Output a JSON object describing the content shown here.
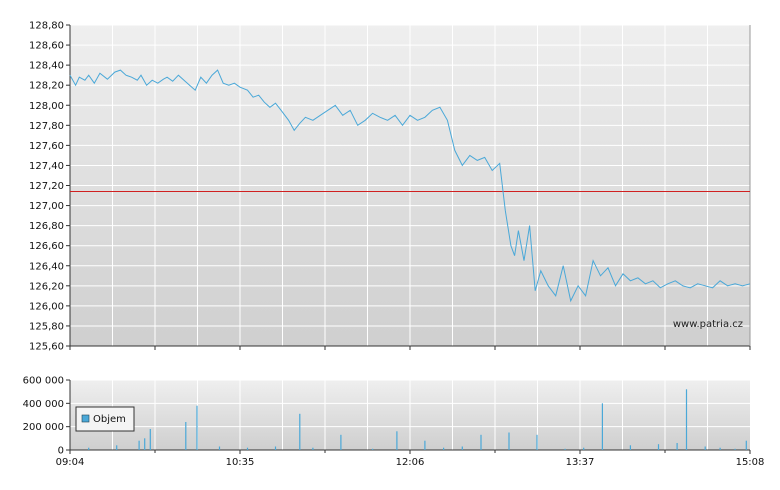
{
  "watermark": "www.patria.cz",
  "chart_data": [
    {
      "type": "line",
      "title": "",
      "xlabel": "",
      "ylabel": "",
      "ylim": [
        125.6,
        128.8
      ],
      "reference_line": 127.14,
      "xlim_minutes": [
        0,
        364
      ],
      "y_ticks": [
        "125,60",
        "125,80",
        "126,00",
        "126,20",
        "126,40",
        "126,60",
        "126,80",
        "127,00",
        "127,20",
        "127,40",
        "127,60",
        "127,80",
        "128,00",
        "128,20",
        "128,40",
        "128,60",
        "128,80"
      ],
      "x_ticks": [
        "09:04",
        "10:35",
        "12:06",
        "13:37",
        "15:08"
      ],
      "grid": true,
      "colors": {
        "line": "#4aa8d8",
        "reference": "#d02020"
      },
      "series": [
        {
          "x": [
            0,
            3,
            5,
            8,
            10,
            13,
            16,
            20,
            24,
            27,
            30,
            33,
            36,
            38,
            41,
            44,
            47,
            50,
            52,
            55,
            58,
            61,
            64,
            67,
            70,
            73,
            76,
            79,
            82,
            85,
            88,
            91,
            95,
            98,
            101,
            104,
            107,
            110,
            113,
            117,
            120,
            123,
            126,
            130,
            134,
            138,
            142,
            146,
            150,
            154,
            158,
            162,
            166,
            170,
            174,
            178,
            182,
            186,
            190,
            194,
            198,
            202,
            206,
            210,
            214,
            218,
            222,
            226,
            230,
            233,
            236,
            238,
            240,
            243,
            246,
            249,
            252,
            256,
            260,
            264,
            268,
            272,
            276,
            280,
            284,
            288,
            292,
            296,
            300,
            304,
            308,
            312,
            316,
            320,
            324,
            328,
            332,
            336,
            340,
            344,
            348,
            352,
            356,
            360,
            364
          ],
          "y": [
            128.3,
            128.2,
            128.28,
            128.25,
            128.3,
            128.22,
            128.32,
            128.26,
            128.33,
            128.35,
            128.3,
            128.28,
            128.25,
            128.3,
            128.2,
            128.25,
            128.22,
            128.26,
            128.28,
            128.24,
            128.3,
            128.25,
            128.2,
            128.15,
            128.28,
            128.22,
            128.3,
            128.35,
            128.22,
            128.2,
            128.22,
            128.18,
            128.15,
            128.08,
            128.1,
            128.03,
            127.98,
            128.02,
            127.95,
            127.85,
            127.75,
            127.82,
            127.88,
            127.85,
            127.9,
            127.95,
            128.0,
            127.9,
            127.95,
            127.8,
            127.85,
            127.92,
            127.88,
            127.85,
            127.9,
            127.8,
            127.9,
            127.85,
            127.88,
            127.95,
            127.98,
            127.85,
            127.55,
            127.4,
            127.5,
            127.45,
            127.48,
            127.35,
            127.42,
            126.95,
            126.6,
            126.5,
            126.75,
            126.45,
            126.8,
            126.15,
            126.35,
            126.2,
            126.1,
            126.4,
            126.05,
            126.2,
            126.1,
            126.45,
            126.3,
            126.38,
            126.2,
            126.32,
            126.25,
            126.28,
            126.22,
            126.25,
            126.18,
            126.22,
            126.25,
            126.2,
            126.18,
            126.22,
            126.2,
            126.18,
            126.25,
            126.2,
            126.22,
            126.2,
            126.22
          ]
        }
      ]
    },
    {
      "type": "bar",
      "title": "",
      "xlabel": "",
      "ylabel": "",
      "ylim": [
        0,
        600000
      ],
      "y_ticks": [
        "0",
        "200 000",
        "400 000",
        "600 000"
      ],
      "x_ticks": [
        "09:04",
        "10:35",
        "12:06",
        "13:37",
        "15:08"
      ],
      "grid": true,
      "legend": {
        "position": "left",
        "entries": [
          "Objem"
        ]
      },
      "colors": {
        "bar": "#4aa8d8"
      },
      "series": [
        {
          "name": "Objem",
          "x": [
            10,
            25,
            37,
            40,
            43,
            62,
            68,
            80,
            95,
            110,
            123,
            130,
            145,
            162,
            175,
            190,
            200,
            210,
            220,
            235,
            250,
            265,
            275,
            285,
            300,
            315,
            325,
            330,
            340,
            348,
            356,
            362
          ],
          "y": [
            20000,
            40000,
            80000,
            100000,
            180000,
            240000,
            380000,
            30000,
            20000,
            30000,
            310000,
            20000,
            130000,
            10000,
            160000,
            80000,
            20000,
            30000,
            130000,
            150000,
            130000,
            10000,
            20000,
            400000,
            40000,
            50000,
            60000,
            520000,
            30000,
            20000,
            10000,
            80000
          ]
        }
      ]
    }
  ]
}
